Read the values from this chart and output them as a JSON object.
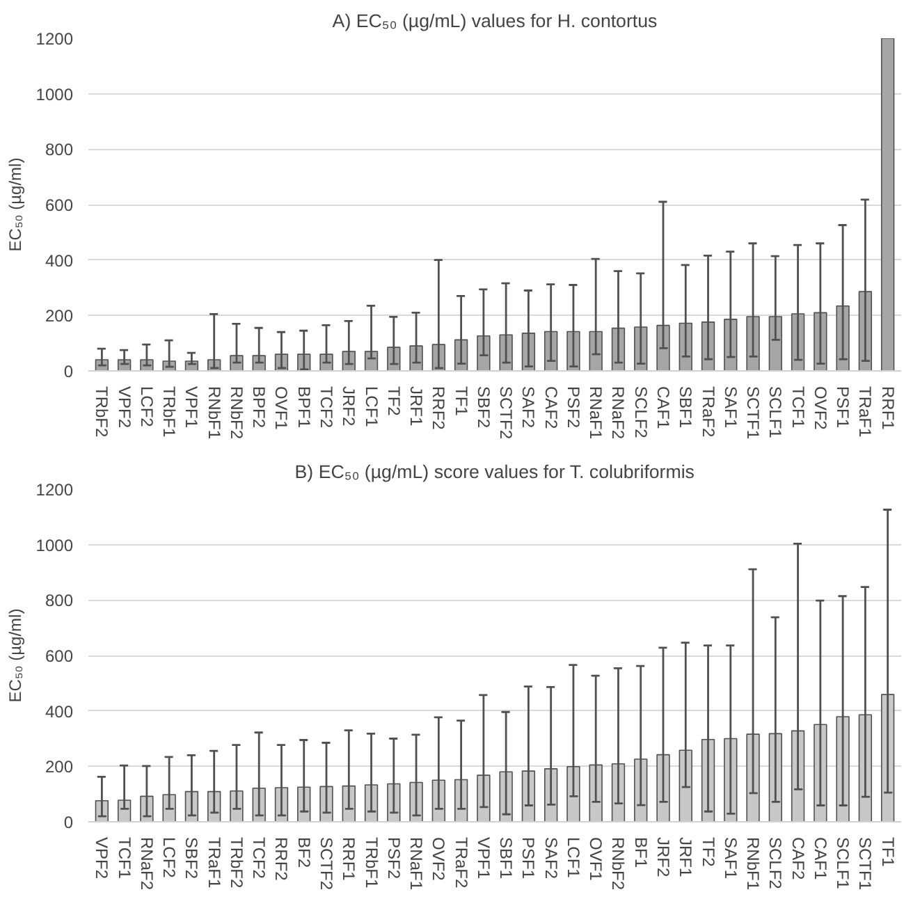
{
  "chart_data": [
    {
      "type": "bar",
      "title": "A) EC₅₀ (µg/mL) values for H. contortus",
      "ylabel": "EC₅₀ (µg/ml)",
      "categories": [
        "TRbF2",
        "VPF2",
        "LCF2",
        "TRbF1",
        "VPF1",
        "RNbF1",
        "RNbF2",
        "BPF2",
        "OVF1",
        "BPF1",
        "TCF2",
        "JRF2",
        "LCF1",
        "TF2",
        "JRF1",
        "RRF2",
        "TF1",
        "SBF2",
        "SCTF2",
        "SAF2",
        "CAF2",
        "PSF2",
        "RNaF1",
        "RNaF2",
        "SCLF2",
        "CAF1",
        "SBF1",
        "TRaF2",
        "SAF1",
        "SCTF1",
        "SCLF1",
        "TCF1",
        "OVF2",
        "PSF1",
        "TRaF1",
        "RRF1"
      ],
      "values": [
        40,
        40,
        40,
        35,
        35,
        40,
        55,
        55,
        60,
        60,
        60,
        70,
        70,
        85,
        90,
        95,
        112,
        126,
        130,
        136,
        142,
        142,
        142,
        154,
        158,
        164,
        172,
        176,
        186,
        196,
        196,
        206,
        210,
        234,
        286,
        1200
      ],
      "errors": [
        [
          20,
          80
        ],
        [
          25,
          75
        ],
        [
          20,
          95
        ],
        [
          15,
          110
        ],
        [
          25,
          65
        ],
        [
          10,
          205
        ],
        [
          30,
          170
        ],
        [
          30,
          155
        ],
        [
          10,
          140
        ],
        [
          5,
          145
        ],
        [
          30,
          165
        ],
        [
          25,
          180
        ],
        [
          45,
          235
        ],
        [
          25,
          195
        ],
        [
          30,
          210
        ],
        [
          10,
          400
        ],
        [
          26,
          270
        ],
        [
          56,
          294
        ],
        [
          30,
          316
        ],
        [
          16,
          290
        ],
        [
          36,
          312
        ],
        [
          16,
          310
        ],
        [
          60,
          404
        ],
        [
          30,
          360
        ],
        [
          26,
          352
        ],
        [
          82,
          610
        ],
        [
          52,
          382
        ],
        [
          42,
          416
        ],
        [
          50,
          430
        ],
        [
          52,
          460
        ],
        [
          112,
          414
        ],
        [
          40,
          454
        ],
        [
          26,
          460
        ],
        [
          42,
          526
        ],
        [
          36,
          618
        ],
        null
      ],
      "color": "#a6a6a6",
      "ylim": [
        0,
        1200
      ],
      "yticks": [
        0,
        200,
        400,
        600,
        800,
        1000,
        1200
      ],
      "grid": "y"
    },
    {
      "type": "bar",
      "title": "B) EC₅₀ (µg/mL) score values for T. colubriformis",
      "ylabel": "EC₅₀ (µg/ml)",
      "categories": [
        "VPF2",
        "TCF1",
        "RNaF2",
        "LCF2",
        "SBF2",
        "TRaF1",
        "TRbF2",
        "TCF2",
        "RRF2",
        "BF2",
        "SCTF2",
        "RRF1",
        "TRbF1",
        "PSF2",
        "RNaF1",
        "OVF2",
        "TRaF2",
        "VPF1",
        "SBF1",
        "PSF1",
        "SAF2",
        "LCF1",
        "OVF1",
        "RNbF2",
        "BF1",
        "JRF2",
        "JRF1",
        "TF2",
        "SAF1",
        "RNbF1",
        "SCLF2",
        "CAF2",
        "CAF1",
        "SCLF1",
        "SCTF1",
        "TF1"
      ],
      "values": [
        76,
        78,
        92,
        98,
        109,
        109,
        111,
        121,
        123,
        125,
        127,
        129,
        133,
        137,
        142,
        150,
        152,
        168,
        180,
        183,
        191,
        199,
        205,
        209,
        226,
        242,
        258,
        297,
        300,
        316,
        318,
        328,
        351,
        379,
        386,
        459
      ],
      "errors": [
        [
          20,
          162
        ],
        [
          47,
          203
        ],
        [
          20,
          201
        ],
        [
          47,
          234
        ],
        [
          23,
          240
        ],
        [
          33,
          256
        ],
        [
          47,
          277
        ],
        [
          23,
          322
        ],
        [
          23,
          277
        ],
        [
          37,
          295
        ],
        [
          33,
          285
        ],
        [
          47,
          330
        ],
        [
          37,
          318
        ],
        [
          33,
          300
        ],
        [
          23,
          314
        ],
        [
          47,
          377
        ],
        [
          47,
          365
        ],
        [
          53,
          457
        ],
        [
          27,
          396
        ],
        [
          59,
          488
        ],
        [
          62,
          486
        ],
        [
          92,
          566
        ],
        [
          72,
          527
        ],
        [
          66,
          554
        ],
        [
          60,
          562
        ],
        [
          72,
          628
        ],
        [
          125,
          646
        ],
        [
          37,
          636
        ],
        [
          29,
          636
        ],
        [
          103,
          911
        ],
        [
          72,
          738
        ],
        [
          117,
          1003
        ],
        [
          59,
          798
        ],
        [
          59,
          814
        ],
        [
          90,
          847
        ],
        [
          105,
          1126
        ]
      ],
      "color": "#c8c8c8",
      "ylim": [
        0,
        1200
      ],
      "yticks": [
        0,
        200,
        400,
        600,
        800,
        1000,
        1200
      ],
      "grid": "y"
    }
  ]
}
